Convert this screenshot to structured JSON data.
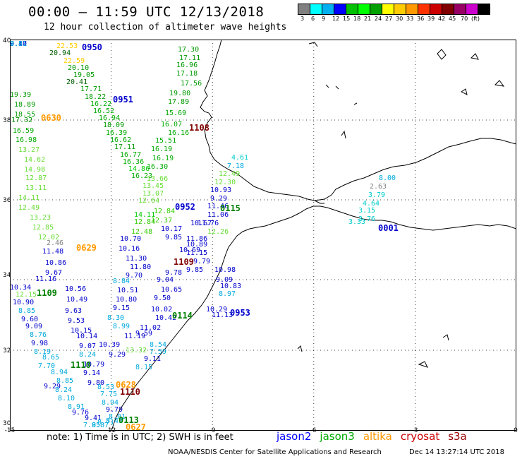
{
  "header": {
    "title": "00:00 – 11:59 UTC 12/13/2018",
    "subtitle": "12 hour collection of altimeter wave heights"
  },
  "colorbar": {
    "colors": [
      "#808080",
      "#00ffff",
      "#00b0f0",
      "#0000ff",
      "#00c000",
      "#00ff00",
      "#00a000",
      "#ffff00",
      "#ffcc00",
      "#ff9900",
      "#ff3300",
      "#cc0000",
      "#800000",
      "#990066",
      "#cc00cc",
      "#000000"
    ],
    "labels": [
      "3",
      "6",
      "9",
      "12",
      "15",
      "18",
      "21",
      "24",
      "27",
      "30",
      "33",
      "36",
      "39",
      "42",
      "45",
      "70",
      "(ft)"
    ]
  },
  "axes": {
    "x_ticks": [
      "-15",
      "-12",
      "-9",
      "-6",
      "-3",
      "0"
    ],
    "y_ticks": [
      "40",
      "38",
      "36",
      "34",
      "32",
      "30"
    ]
  },
  "pass_labels": [
    {
      "t": "0950",
      "c": "#0000cc"
    },
    {
      "t": "0951",
      "c": "#0000cc"
    },
    {
      "t": "0630",
      "c": "#ff9900"
    },
    {
      "t": "1108",
      "c": "#800000"
    },
    {
      "t": "0952",
      "c": "#0000cc"
    },
    {
      "t": "0115",
      "c": "#008000"
    },
    {
      "t": "0001",
      "c": "#0000cc"
    },
    {
      "t": "0629",
      "c": "#ff9900"
    },
    {
      "t": "1109",
      "c": "#800000"
    },
    {
      "t": "1109",
      "c": "#008000"
    },
    {
      "t": "0114",
      "c": "#008000"
    },
    {
      "t": "0953",
      "c": "#0000cc"
    },
    {
      "t": "1110",
      "c": "#008000"
    },
    {
      "t": "0628",
      "c": "#ff9900"
    },
    {
      "t": "1110",
      "c": "#800000"
    },
    {
      "t": "0113",
      "c": "#008000"
    },
    {
      "t": "0627",
      "c": "#ff9900"
    }
  ],
  "obs": [
    {
      "v": "22.53",
      "c": "#ffcc00"
    },
    {
      "v": "20.94",
      "c": "#006000"
    },
    {
      "v": "22.59",
      "c": "#ffcc00"
    },
    {
      "v": "20.10",
      "c": "#009900"
    },
    {
      "v": "19.05",
      "c": "#009900"
    },
    {
      "v": "20.41",
      "c": "#006000"
    },
    {
      "v": "17.71",
      "c": "#009900"
    },
    {
      "v": "18.22",
      "c": "#009900"
    },
    {
      "v": "16.22",
      "c": "#00aa00"
    },
    {
      "v": "16.52",
      "c": "#00aa00"
    },
    {
      "v": "16.94",
      "c": "#00aa00"
    },
    {
      "v": "18.09",
      "c": "#009900"
    },
    {
      "v": "16.39",
      "c": "#00aa00"
    },
    {
      "v": "16.62",
      "c": "#00aa00"
    },
    {
      "v": "17.11",
      "c": "#009900"
    },
    {
      "v": "16.77",
      "c": "#00aa00"
    },
    {
      "v": "16.36",
      "c": "#00aa00"
    },
    {
      "v": "14.86",
      "c": "#00cc00"
    },
    {
      "v": "16.23",
      "c": "#00aa00"
    },
    {
      "v": "13.66",
      "c": "#66dd33"
    },
    {
      "v": "13.45",
      "c": "#66dd33"
    },
    {
      "v": "13.07",
      "c": "#66dd33"
    },
    {
      "v": "12.64",
      "c": "#66dd33"
    },
    {
      "v": "14.11",
      "c": "#00cc00"
    },
    {
      "v": "12.84",
      "c": "#33cc00"
    },
    {
      "v": "12.48",
      "c": "#33cc00"
    },
    {
      "v": "17.30",
      "c": "#009900"
    },
    {
      "v": "17.11",
      "c": "#009900"
    },
    {
      "v": "16.96",
      "c": "#009900"
    },
    {
      "v": "17.18",
      "c": "#009900"
    },
    {
      "v": "17.56",
      "c": "#009900"
    },
    {
      "v": "19.80",
      "c": "#009900"
    },
    {
      "v": "17.89",
      "c": "#009900"
    },
    {
      "v": "15.69",
      "c": "#00aa00"
    },
    {
      "v": "16.07",
      "c": "#00aa00"
    },
    {
      "v": "16.16",
      "c": "#00aa00"
    },
    {
      "v": "15.51",
      "c": "#00aa00"
    },
    {
      "v": "16.19",
      "c": "#00aa00"
    },
    {
      "v": "16.19",
      "c": "#00aa00"
    },
    {
      "v": "16.30",
      "c": "#00aa00"
    },
    {
      "v": "12.84",
      "c": "#33cc00"
    },
    {
      "v": "12.37",
      "c": "#33cc00"
    },
    {
      "v": "19.39",
      "c": "#009900"
    },
    {
      "v": "18.89",
      "c": "#009900"
    },
    {
      "v": "18.55",
      "c": "#009900"
    },
    {
      "v": "17.32",
      "c": "#009900"
    },
    {
      "v": "16.59",
      "c": "#00aa00"
    },
    {
      "v": "16.98",
      "c": "#00aa00"
    },
    {
      "v": "13.27",
      "c": "#66dd33"
    },
    {
      "v": "14.62",
      "c": "#66dd33"
    },
    {
      "v": "14.98",
      "c": "#66dd33"
    },
    {
      "v": "12.87",
      "c": "#66dd33"
    },
    {
      "v": "13.11",
      "c": "#66dd33"
    },
    {
      "v": "14.11",
      "c": "#66dd33"
    },
    {
      "v": "12.49",
      "c": "#66dd33"
    },
    {
      "v": "13.23",
      "c": "#66dd33"
    },
    {
      "v": "12.85",
      "c": "#66dd33"
    },
    {
      "v": "12.02",
      "c": "#66dd33"
    },
    {
      "v": "4.61",
      "c": "#00cccc"
    },
    {
      "v": "7.18",
      "c": "#00aadd"
    },
    {
      "v": "12.49",
      "c": "#66dd33"
    },
    {
      "v": "12.30",
      "c": "#66dd33"
    },
    {
      "v": "10.93",
      "c": "#0000cc"
    },
    {
      "v": "9.29",
      "c": "#0000cc"
    },
    {
      "v": "11.46",
      "c": "#0000cc"
    },
    {
      "v": "11.06",
      "c": "#0000cc"
    },
    {
      "v": "11.76",
      "c": "#0000cc"
    },
    {
      "v": "10.67",
      "c": "#0000cc"
    },
    {
      "v": "12.26",
      "c": "#66dd33"
    },
    {
      "v": "10.17",
      "c": "#0000cc"
    },
    {
      "v": "9.85",
      "c": "#0000cc"
    },
    {
      "v": "11.86",
      "c": "#0000cc"
    },
    {
      "v": "10.89",
      "c": "#0000cc"
    },
    {
      "v": "11.15",
      "c": "#0000cc"
    },
    {
      "v": "10.69",
      "c": "#0000cc"
    },
    {
      "v": "10.70",
      "c": "#0000cc"
    },
    {
      "v": "10.16",
      "c": "#0000cc"
    },
    {
      "v": "11.30",
      "c": "#0000cc"
    },
    {
      "v": "11.80",
      "c": "#0000cc"
    },
    {
      "v": "9.70",
      "c": "#0000cc"
    },
    {
      "v": "9.79",
      "c": "#0000cc"
    },
    {
      "v": "9.85",
      "c": "#0000cc"
    },
    {
      "v": "9.78",
      "c": "#0000cc"
    },
    {
      "v": "10.98",
      "c": "#0000cc"
    },
    {
      "v": "9.04",
      "c": "#0000cc"
    },
    {
      "v": "9.09",
      "c": "#0000cc"
    },
    {
      "v": "8.84",
      "c": "#00aadd"
    },
    {
      "v": "10.51",
      "c": "#0000cc"
    },
    {
      "v": "10.65",
      "c": "#0000cc"
    },
    {
      "v": "10.83",
      "c": "#0000cc"
    },
    {
      "v": "10.80",
      "c": "#0000cc"
    },
    {
      "v": "9.50",
      "c": "#0000cc"
    },
    {
      "v": "8.97",
      "c": "#00aadd"
    },
    {
      "v": "9.15",
      "c": "#0000cc"
    },
    {
      "v": "10.02",
      "c": "#0000cc"
    },
    {
      "v": "10.29",
      "c": "#0000cc"
    },
    {
      "v": "8.30",
      "c": "#00aadd"
    },
    {
      "v": "10.42",
      "c": "#0000cc"
    },
    {
      "v": "11.13",
      "c": "#0000cc"
    },
    {
      "v": "8.99",
      "c": "#00aadd"
    },
    {
      "v": "11.02",
      "c": "#0000cc"
    },
    {
      "v": "9.59",
      "c": "#0000cc"
    },
    {
      "v": "11.19",
      "c": "#0000cc"
    },
    {
      "v": "8.54",
      "c": "#00aadd"
    },
    {
      "v": "10.39",
      "c": "#0000cc"
    },
    {
      "v": "7.59",
      "c": "#00aadd"
    },
    {
      "v": "13.32",
      "c": "#66dd33"
    },
    {
      "v": "9.29",
      "c": "#0000cc"
    },
    {
      "v": "9.11",
      "c": "#0000cc"
    },
    {
      "v": "8.15",
      "c": "#00aadd"
    },
    {
      "v": "8.00",
      "c": "#00aadd"
    },
    {
      "v": "2.63",
      "c": "#808080"
    },
    {
      "v": "3.79",
      "c": "#00cccc"
    },
    {
      "v": "4.64",
      "c": "#00cccc"
    },
    {
      "v": "3.15",
      "c": "#00cccc"
    },
    {
      "v": "3.76",
      "c": "#00cccc"
    },
    {
      "v": "3.33",
      "c": "#00cccc"
    },
    {
      "v": "2.46",
      "c": "#808080"
    },
    {
      "v": "11.48",
      "c": "#0000cc"
    },
    {
      "v": "10.86",
      "c": "#0000cc"
    },
    {
      "v": "9.67",
      "c": "#0000cc"
    },
    {
      "v": "11.16",
      "c": "#0000cc"
    },
    {
      "v": "10.56",
      "c": "#0000cc"
    },
    {
      "v": "10.49",
      "c": "#0000cc"
    },
    {
      "v": "9.63",
      "c": "#0000cc"
    },
    {
      "v": "9.53",
      "c": "#0000cc"
    },
    {
      "v": "10.15",
      "c": "#0000cc"
    },
    {
      "v": "10.14",
      "c": "#0000cc"
    },
    {
      "v": "9.07",
      "c": "#0000cc"
    },
    {
      "v": "8.24",
      "c": "#00aadd"
    },
    {
      "v": "10.79",
      "c": "#0000cc"
    },
    {
      "v": "9.14",
      "c": "#0000cc"
    },
    {
      "v": "9.80",
      "c": "#0000cc"
    },
    {
      "v": "10.34",
      "c": "#0000cc"
    },
    {
      "v": "12.15",
      "c": "#66dd33"
    },
    {
      "v": "10.90",
      "c": "#0000cc"
    },
    {
      "v": "8.85",
      "c": "#00aadd"
    },
    {
      "v": "9.60",
      "c": "#0000cc"
    },
    {
      "v": "9.09",
      "c": "#0000cc"
    },
    {
      "v": "8.76",
      "c": "#00aadd"
    },
    {
      "v": "9.98",
      "c": "#0000cc"
    },
    {
      "v": "8.19",
      "c": "#00aadd"
    },
    {
      "v": "8.65",
      "c": "#00aadd"
    },
    {
      "v": "7.70",
      "c": "#00aadd"
    },
    {
      "v": "8.94",
      "c": "#00aadd"
    },
    {
      "v": "8.85",
      "c": "#00aadd"
    },
    {
      "v": "9.29",
      "c": "#0000cc"
    },
    {
      "v": "8.24",
      "c": "#00aadd"
    },
    {
      "v": "8.10",
      "c": "#00aadd"
    },
    {
      "v": "8.91",
      "c": "#00aadd"
    },
    {
      "v": "9.76",
      "c": "#0000cc"
    },
    {
      "v": "9.41",
      "c": "#0000cc"
    },
    {
      "v": "7.95",
      "c": "#00aadd"
    },
    {
      "v": "8.53",
      "c": "#00aadd"
    },
    {
      "v": "7.75",
      "c": "#00aadd"
    },
    {
      "v": "8.94",
      "c": "#00aadd"
    },
    {
      "v": "9.79",
      "c": "#0000cc"
    },
    {
      "v": "8.01",
      "c": "#00aadd"
    },
    {
      "v": "8.43",
      "c": "#00aadd"
    },
    {
      "v": "8.71",
      "c": "#00aadd"
    },
    {
      "v": "8.87",
      "c": "#00aadd"
    },
    {
      "v": "9.40",
      "c": "#0000cc"
    },
    {
      "v": "9.17",
      "c": "#0000cc"
    },
    {
      "v": "8.31",
      "c": "#00aadd"
    },
    {
      "v": "7.81",
      "c": "#00aadd"
    }
  ],
  "footer": {
    "note": "note: 1) Time is in UTC; 2) SWH is in feet",
    "satellites": [
      {
        "name": "jason2",
        "color": "#0000ff"
      },
      {
        "name": "jason3",
        "color": "#00aa00"
      },
      {
        "name": "altika",
        "color": "#ff9900"
      },
      {
        "name": "cryosat",
        "color": "#cc0000"
      },
      {
        "name": "s3a",
        "color": "#990000"
      }
    ],
    "credit": "NOAA/NESDIS Center for Satellite Applications and Research",
    "generated": "Dec 14 13:27:14 UTC 2018"
  }
}
